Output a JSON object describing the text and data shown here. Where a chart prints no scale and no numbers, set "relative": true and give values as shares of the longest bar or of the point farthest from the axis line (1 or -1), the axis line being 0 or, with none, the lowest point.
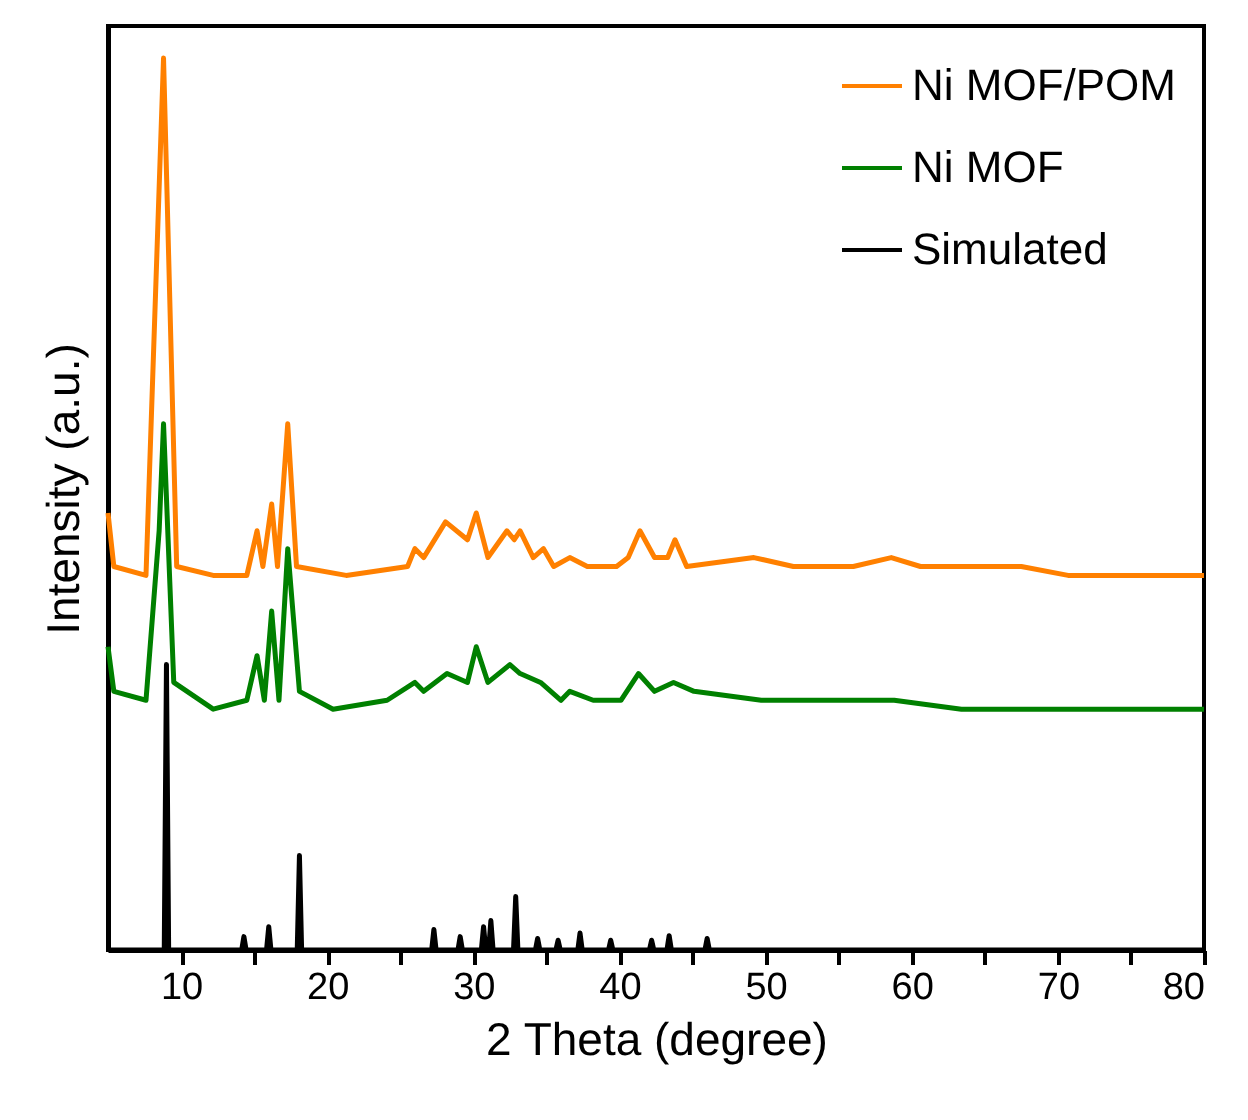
{
  "chart_data": {
    "type": "line",
    "relative": true,
    "xlabel": "2 Theta (degree)",
    "ylabel": "Intensity (a.u.)",
    "xlim": [
      5,
      80
    ],
    "xticks": [
      10,
      {
        "value": 15,
        "label": null
      },
      20,
      {
        "value": 25,
        "label": null
      },
      30,
      {
        "value": 35,
        "label": null
      },
      40,
      {
        "value": 45,
        "label": null
      },
      50,
      {
        "value": 55,
        "label": null
      },
      60,
      {
        "value": 65,
        "label": null
      },
      70,
      {
        "value": 75,
        "label": null
      },
      80
    ],
    "tick_labels": "x",
    "grid": false,
    "legend": "top right",
    "marker": "none",
    "line_style": "solid",
    "series": [
      {
        "name": "Ni MOF/POM",
        "color": "#ff8000",
        "x": [
          5,
          5.4,
          7.6,
          8.8,
          9.7,
          12.2,
          14.5,
          15.2,
          15.6,
          16.2,
          16.6,
          17.3,
          17.9,
          21.3,
          25.5,
          26,
          26.6,
          28.1,
          29.6,
          30.2,
          31,
          32.3,
          32.8,
          33.2,
          34.1,
          34.8,
          35.5,
          36.6,
          37.8,
          39.8,
          40.6,
          41.4,
          42.4,
          43.3,
          43.8,
          44.6,
          49.2,
          51.9,
          56,
          58.6,
          60.6,
          62.4,
          64.3,
          67.5,
          70.7,
          75.2,
          80
        ],
        "values": [
          0.49,
          0.43,
          0.42,
          1.0,
          0.43,
          0.42,
          0.42,
          0.47,
          0.43,
          0.5,
          0.43,
          0.59,
          0.43,
          0.42,
          0.43,
          0.45,
          0.44,
          0.48,
          0.46,
          0.49,
          0.44,
          0.47,
          0.46,
          0.47,
          0.44,
          0.45,
          0.43,
          0.44,
          0.43,
          0.43,
          0.44,
          0.47,
          0.44,
          0.44,
          0.46,
          0.43,
          0.44,
          0.43,
          0.43,
          0.44,
          0.43,
          0.43,
          0.43,
          0.43,
          0.42,
          0.42,
          0.42
        ]
      },
      {
        "name": "Ni MOF",
        "color": "#008000",
        "x": [
          5,
          5.4,
          7.6,
          8.5,
          8.8,
          9.5,
          12.2,
          14.5,
          15.2,
          15.7,
          16.2,
          16.7,
          17.3,
          18.1,
          20.4,
          24.1,
          26,
          26.6,
          28.2,
          29.6,
          30.2,
          31,
          32.5,
          33.2,
          34.6,
          36,
          36.6,
          38.2,
          40.1,
          41.3,
          42.4,
          43.7,
          45.1,
          49.7,
          52.4,
          58.8,
          63.4,
          67.9,
          73.4,
          80
        ],
        "values": [
          0.34,
          0.29,
          0.28,
          0.47,
          0.59,
          0.3,
          0.27,
          0.28,
          0.33,
          0.28,
          0.38,
          0.28,
          0.45,
          0.29,
          0.27,
          0.28,
          0.3,
          0.29,
          0.31,
          0.3,
          0.34,
          0.3,
          0.32,
          0.31,
          0.3,
          0.28,
          0.29,
          0.28,
          0.28,
          0.31,
          0.29,
          0.3,
          0.29,
          0.28,
          0.28,
          0.28,
          0.27,
          0.27,
          0.27,
          0.27
        ]
      },
      {
        "name": "Simulated",
        "color": "#000000",
        "x": [
          5,
          8.85,
          9.0,
          9.15,
          14.15,
          14.3,
          14.45,
          15.85,
          16.0,
          16.15,
          17.95,
          18.1,
          18.25,
          27.15,
          27.3,
          27.45,
          28.95,
          29.1,
          29.25,
          30.55,
          30.7,
          30.85,
          31.05,
          31.2,
          31.35,
          32.75,
          32.9,
          33.05,
          34.25,
          34.4,
          34.55,
          35.65,
          35.8,
          35.95,
          37.15,
          37.3,
          37.45,
          39.25,
          39.4,
          39.55,
          42.05,
          42.2,
          42.35,
          43.25,
          43.4,
          43.55,
          45.85,
          46.0,
          46.15,
          80
        ],
        "values": [
          0,
          0,
          0.32,
          0,
          0,
          0.015,
          0,
          0,
          0.026,
          0,
          0,
          0.106,
          0,
          0,
          0.023,
          0,
          0,
          0.015,
          0,
          0,
          0.026,
          0,
          0,
          0.033,
          0,
          0,
          0.06,
          0,
          0,
          0.013,
          0,
          0,
          0.011,
          0,
          0,
          0.019,
          0,
          0,
          0.011,
          0,
          0,
          0.011,
          0,
          0,
          0.016,
          0,
          0,
          0.013,
          0,
          0
        ]
      }
    ]
  }
}
